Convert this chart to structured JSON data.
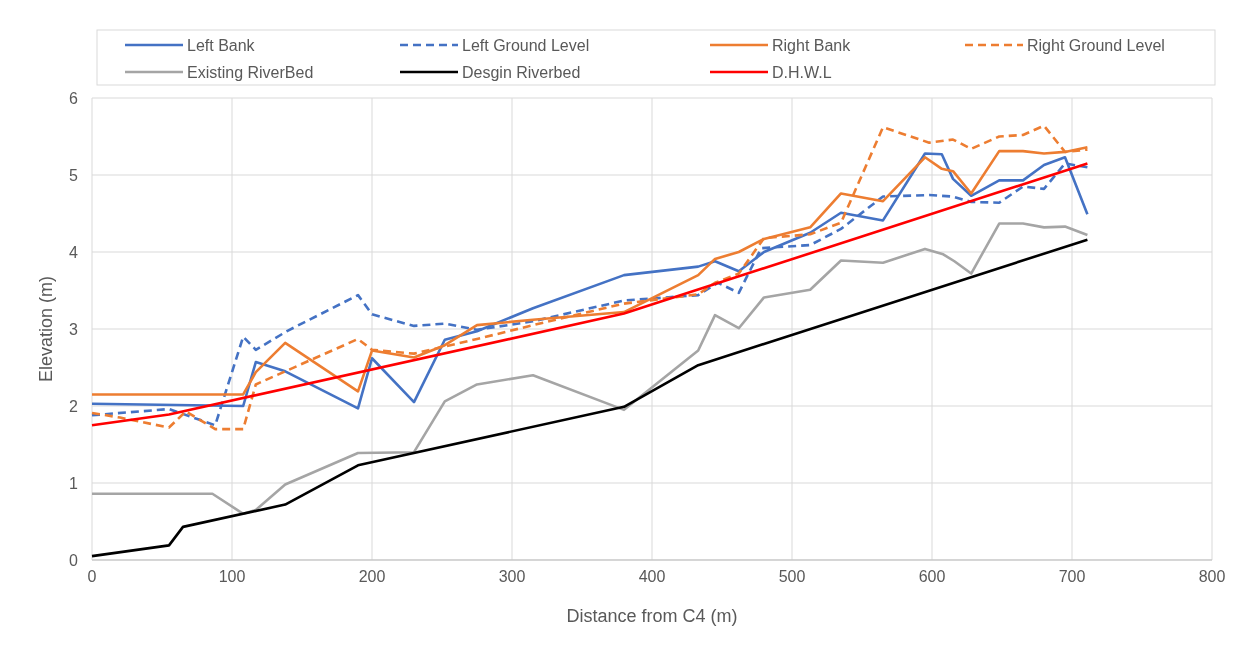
{
  "chart_data": {
    "type": "line",
    "xlabel": "Distance from C4 (m)",
    "ylabel": "Elevation (m)",
    "xlim": [
      0,
      800
    ],
    "xticks": [
      0,
      100,
      200,
      300,
      400,
      500,
      600,
      700,
      800
    ],
    "ylim": [
      0,
      6
    ],
    "yticks": [
      0,
      1,
      2,
      3,
      4,
      5,
      6
    ],
    "grid": true,
    "legend": "top",
    "marker": "none",
    "series": [
      {
        "name": "Left Bank",
        "color": "#4472c4",
        "line_style": "solid",
        "x": [
          0,
          108,
          117,
          138,
          190,
          200,
          230,
          252,
          275,
          315,
          380,
          433,
          445,
          462,
          480,
          513,
          535,
          565,
          595,
          607,
          615,
          628,
          648,
          665,
          680,
          695,
          711
        ],
        "values": [
          2.03,
          2.0,
          2.57,
          2.45,
          1.97,
          2.62,
          2.05,
          2.86,
          2.97,
          3.27,
          3.7,
          3.81,
          3.88,
          3.75,
          4.0,
          4.25,
          4.51,
          4.41,
          5.28,
          5.27,
          4.95,
          4.73,
          4.93,
          4.93,
          5.13,
          5.23,
          4.49
        ]
      },
      {
        "name": "Left Ground Level",
        "color": "#4472c4",
        "line_style": "dashed",
        "x": [
          0,
          55,
          88,
          108,
          117,
          140,
          190,
          200,
          230,
          252,
          275,
          315,
          380,
          433,
          447,
          462,
          478,
          513,
          535,
          565,
          598,
          615,
          628,
          648,
          665,
          680,
          695,
          711
        ],
        "values": [
          1.88,
          1.96,
          1.75,
          2.9,
          2.73,
          2.98,
          3.44,
          3.19,
          3.04,
          3.07,
          2.99,
          3.1,
          3.37,
          3.44,
          3.6,
          3.47,
          4.05,
          4.09,
          4.3,
          4.72,
          4.74,
          4.72,
          4.65,
          4.64,
          4.85,
          4.82,
          5.15,
          5.1
        ]
      },
      {
        "name": "Right Bank",
        "color": "#ed7d31",
        "line_style": "solid",
        "x": [
          0,
          108,
          117,
          138,
          190,
          200,
          230,
          252,
          275,
          315,
          380,
          433,
          445,
          462,
          480,
          513,
          535,
          565,
          595,
          607,
          615,
          628,
          648,
          665,
          680,
          695,
          711
        ],
        "values": [
          2.15,
          2.15,
          2.44,
          2.82,
          2.19,
          2.72,
          2.63,
          2.79,
          3.05,
          3.12,
          3.22,
          3.7,
          3.91,
          4.0,
          4.17,
          4.32,
          4.76,
          4.66,
          5.23,
          5.08,
          5.05,
          4.76,
          5.31,
          5.31,
          5.28,
          5.3,
          5.36
        ]
      },
      {
        "name": "Right Ground Level",
        "color": "#ed7d31",
        "line_style": "dashed",
        "x": [
          0,
          20,
          55,
          67,
          88,
          108,
          117,
          138,
          190,
          200,
          230,
          275,
          315,
          380,
          433,
          445,
          462,
          480,
          513,
          535,
          565,
          598,
          615,
          628,
          648,
          665,
          680,
          695,
          711
        ],
        "values": [
          1.91,
          1.85,
          1.72,
          1.93,
          1.7,
          1.7,
          2.28,
          2.45,
          2.87,
          2.73,
          2.68,
          2.87,
          3.05,
          3.33,
          3.45,
          3.6,
          3.72,
          4.18,
          4.23,
          4.38,
          5.62,
          5.42,
          5.46,
          5.34,
          5.5,
          5.52,
          5.64,
          5.3,
          5.33
        ]
      },
      {
        "name": "Existing RiverBed",
        "color": "#a5a5a5",
        "line_style": "solid",
        "x": [
          0,
          86,
          108,
          117,
          138,
          190,
          230,
          252,
          275,
          315,
          380,
          433,
          445,
          462,
          480,
          513,
          535,
          565,
          595,
          608,
          616,
          628,
          648,
          665,
          680,
          695,
          711
        ],
        "values": [
          0.86,
          0.86,
          0.6,
          0.65,
          0.98,
          1.39,
          1.4,
          2.06,
          2.28,
          2.4,
          1.95,
          2.72,
          3.18,
          3.01,
          3.41,
          3.51,
          3.89,
          3.86,
          4.04,
          3.97,
          3.88,
          3.72,
          4.37,
          4.37,
          4.32,
          4.33,
          4.22
        ]
      },
      {
        "name": "Desgin Riverbed",
        "color": "#000000",
        "line_style": "solid",
        "x": [
          0,
          55,
          65,
          138,
          190,
          380,
          433,
          711
        ],
        "values": [
          0.05,
          0.19,
          0.43,
          0.72,
          1.23,
          1.99,
          2.53,
          4.16
        ]
      },
      {
        "name": "D.H.W.L",
        "color": "#ff0000",
        "line_style": "solid",
        "x": [
          0,
          55,
          380,
          711
        ],
        "values": [
          1.75,
          1.89,
          3.2,
          5.15
        ]
      }
    ]
  }
}
